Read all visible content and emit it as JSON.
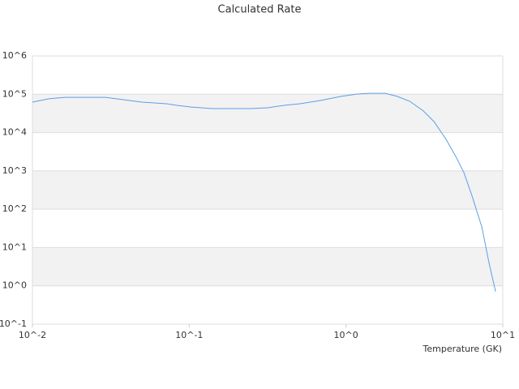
{
  "chart_data": {
    "type": "line",
    "title": "Calculated Rate",
    "x_label": "Temperature (GK)",
    "x": [
      0.01,
      0.0127,
      0.0161,
      0.0292,
      0.0499,
      0.0714,
      0.0834,
      0.102,
      0.141,
      0.249,
      0.316,
      0.402,
      0.509,
      0.687,
      0.925,
      1.17,
      1.4,
      1.78,
      2.13,
      2.55,
      3.12,
      3.64,
      4.35,
      5.01,
      5.65,
      6.37,
      7.35,
      8.18,
      9.0
    ],
    "values": [
      62400,
      76000,
      83000,
      83000,
      62400,
      56600,
      51300,
      46600,
      42200,
      42200,
      44400,
      51300,
      56600,
      68700,
      87700,
      101000,
      106000,
      106000,
      87700,
      65400,
      36500,
      19400,
      6640,
      2390,
      903,
      220,
      34.6,
      3.87,
      0.705
    ],
    "color": "#5a9fe6",
    "xlog": true,
    "ylog": true,
    "grid": true,
    "xlim": [
      0.01,
      10
    ],
    "ylim": [
      0.1,
      1000000
    ],
    "xticks": [
      {
        "value": 0.01,
        "label": "10^-2"
      },
      {
        "value": 0.1,
        "label": "10^-1"
      },
      {
        "value": 1,
        "label": "10^0"
      },
      {
        "value": 10,
        "label": "10^1"
      }
    ],
    "yticks": [
      {
        "value": 0.1,
        "label": "10^-1"
      },
      {
        "value": 1,
        "label": "10^0"
      },
      {
        "value": 10,
        "label": "10^1"
      },
      {
        "value": 100,
        "label": "10^2"
      },
      {
        "value": 1000,
        "label": "10^3"
      },
      {
        "value": 10000,
        "label": "10^4"
      },
      {
        "value": 100000,
        "label": "10^5"
      },
      {
        "value": 1000000,
        "label": "10^6"
      }
    ]
  }
}
